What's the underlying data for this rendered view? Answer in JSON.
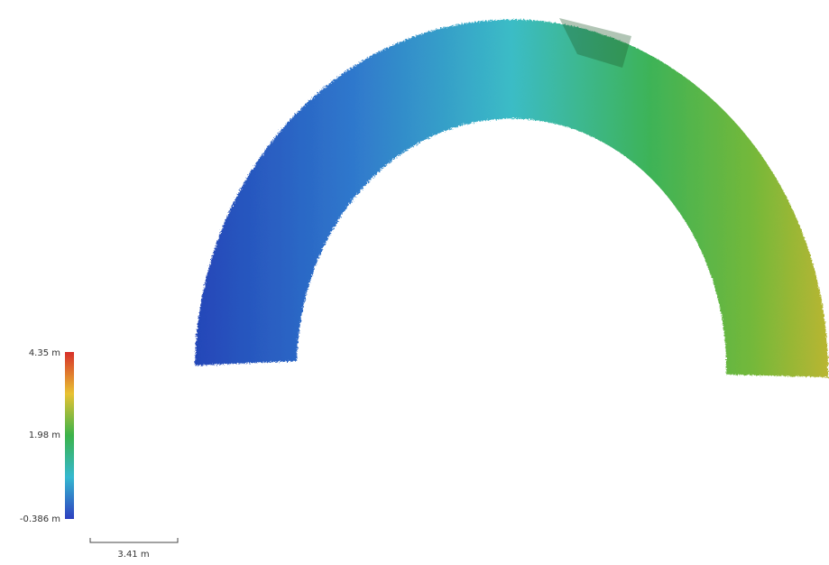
{
  "colorbar": {
    "labels": [
      "4.35 m",
      "1.98 m",
      "-0.386 m"
    ]
  },
  "scale_bar": {
    "label": "3.41 m"
  }
}
